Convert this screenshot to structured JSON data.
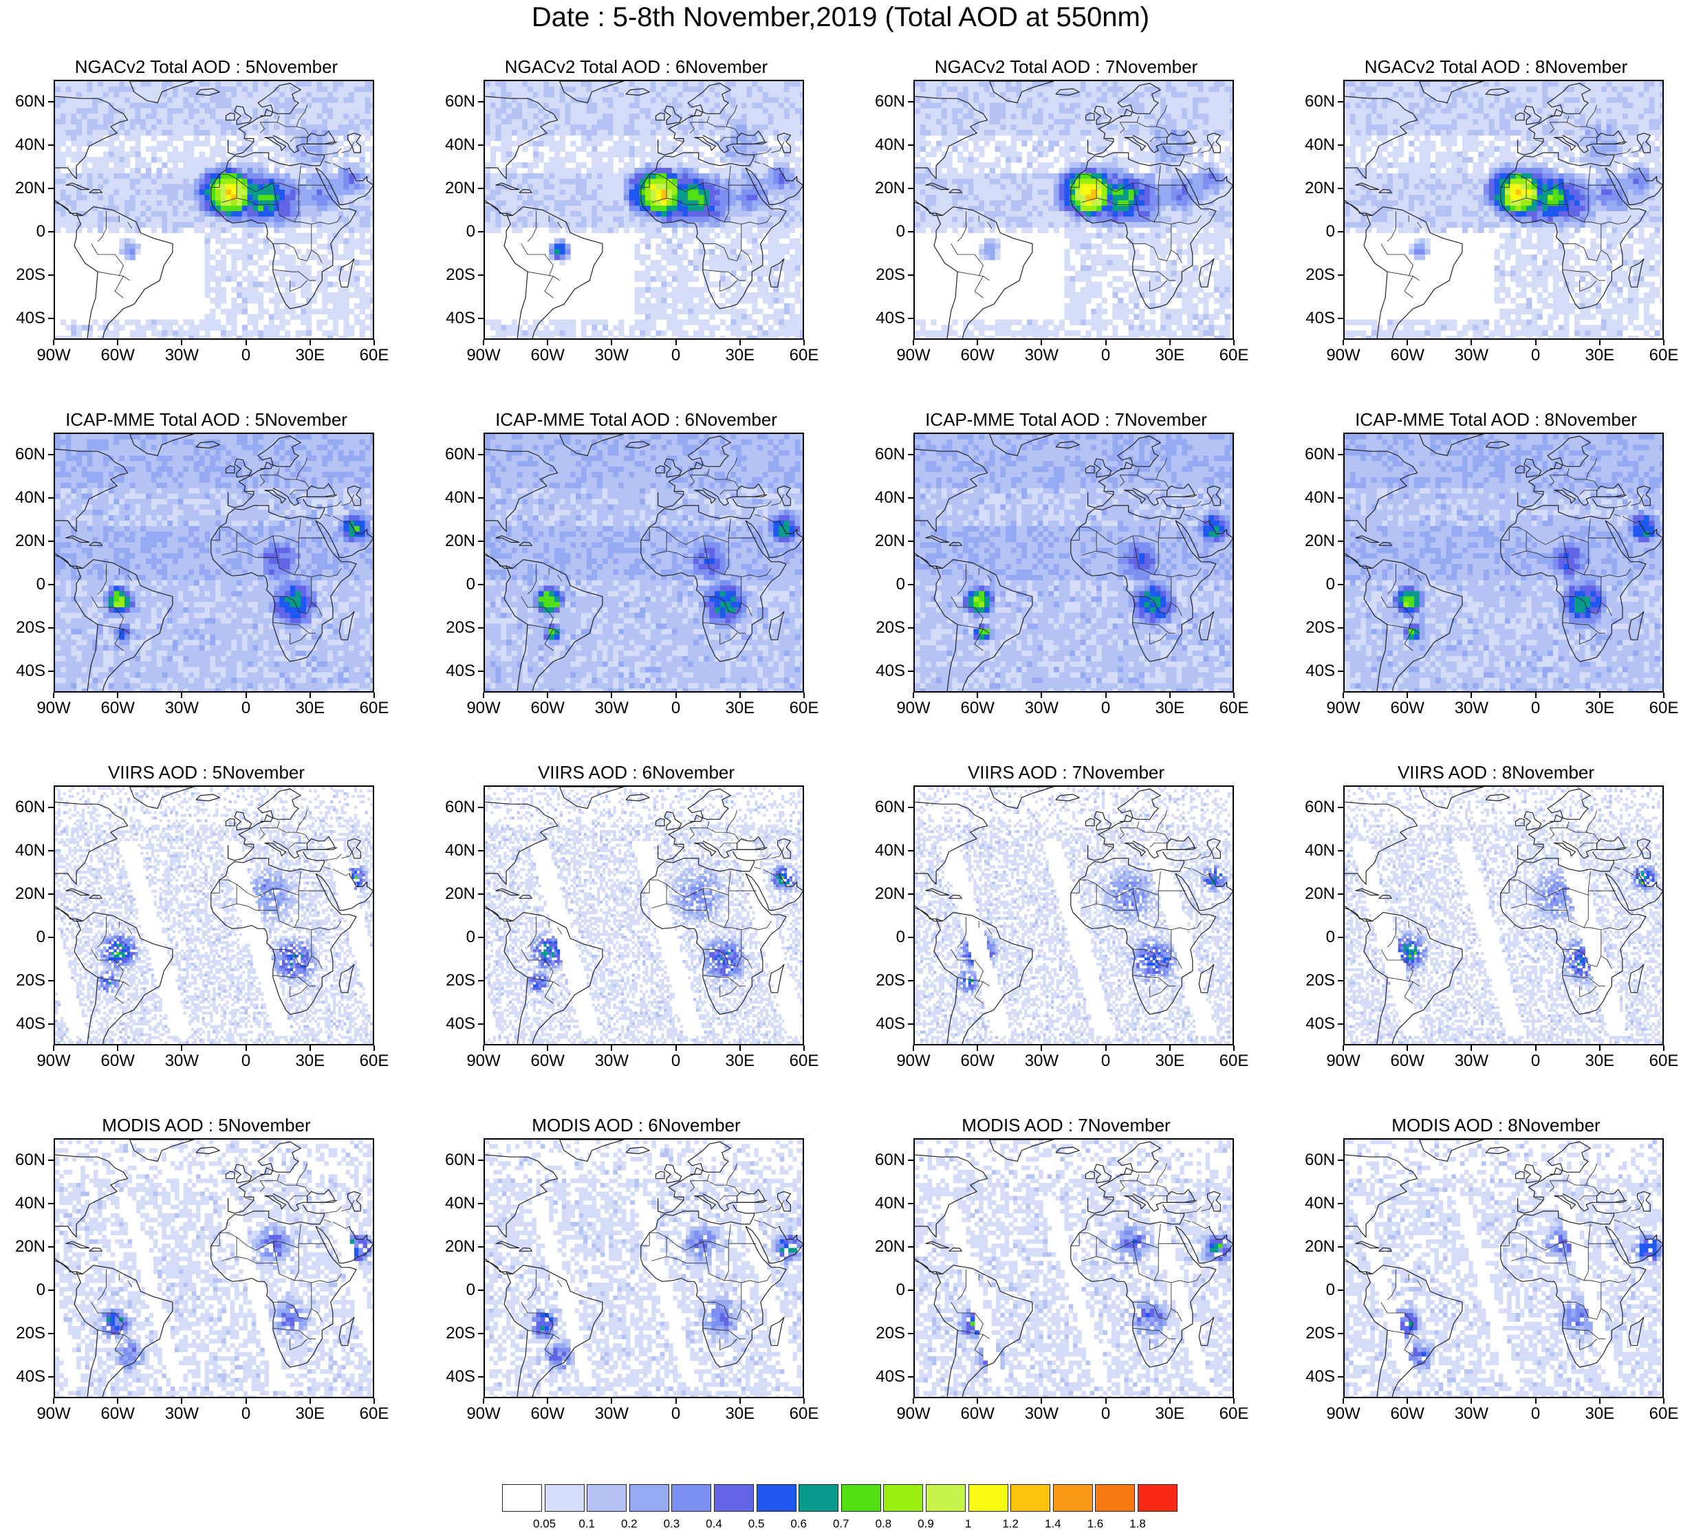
{
  "title": "Date : 5-8th November,2019 (Total AOD at 550nm)",
  "rows": [
    {
      "product": "NGACv2",
      "titles": [
        "NGACv2 Total AOD : 5November",
        "NGACv2 Total AOD : 6November",
        "NGACv2 Total AOD : 7November",
        "NGACv2 Total AOD : 8November"
      ],
      "style": "smooth-sahara"
    },
    {
      "product": "ICAP-MME",
      "titles": [
        "ICAP-MME Total AOD : 5November",
        "ICAP-MME Total AOD : 6November",
        "ICAP-MME Total AOD : 7November",
        "ICAP-MME Total AOD : 8November"
      ],
      "style": "smooth-broad"
    },
    {
      "product": "VIIRS",
      "titles": [
        "VIIRS AOD : 5November",
        "VIIRS AOD : 6November",
        "VIIRS AOD : 7November",
        "VIIRS AOD : 8November"
      ],
      "style": "swath-fine"
    },
    {
      "product": "MODIS",
      "titles": [
        "MODIS AOD : 5November",
        "MODIS AOD : 6November",
        "MODIS AOD : 7November",
        "MODIS AOD : 8November"
      ],
      "style": "swath-coarse"
    }
  ],
  "lat_labels": [
    "60N",
    "40N",
    "20N",
    "0",
    "20S",
    "40S"
  ],
  "lon_labels": [
    "90W",
    "60W",
    "30W",
    "0",
    "30E",
    "60E"
  ],
  "map_extent": {
    "lon_min": -90,
    "lon_max": 60,
    "lat_min": -50,
    "lat_max": 70
  },
  "colorbar": {
    "colors": [
      "#ffffff",
      "#d4dcf8",
      "#b4c2f4",
      "#95aaf2",
      "#7d8ff0",
      "#6266e6",
      "#1f58f0",
      "#099a8c",
      "#52e014",
      "#9aee10",
      "#c6f24a",
      "#f8fa12",
      "#fbc40a",
      "#f99a14",
      "#f77a12",
      "#f82a14"
    ],
    "labels": [
      "0.05",
      "0.1",
      "0.2",
      "0.3",
      "0.4",
      "0.5",
      "0.6",
      "0.7",
      "0.8",
      "0.9",
      "1",
      "1.2",
      "1.4",
      "1.6",
      "1.8"
    ]
  }
}
